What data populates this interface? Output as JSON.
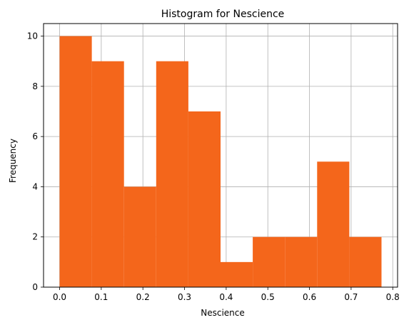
{
  "chart_data": {
    "type": "histogram",
    "title": "Histogram for Nescience",
    "xlabel": "Nescience",
    "ylabel": "Frequency",
    "bin_edges": [
      0.0,
      0.0773,
      0.1546,
      0.2319,
      0.3092,
      0.3865,
      0.4638,
      0.5411,
      0.6184,
      0.6957,
      0.773
    ],
    "counts": [
      10,
      9,
      4,
      9,
      7,
      1,
      2,
      2,
      5,
      2
    ],
    "xlim": [
      -0.0386,
      0.8116
    ],
    "ylim": [
      0,
      10.5
    ],
    "x_ticks": [
      0.0,
      0.1,
      0.2,
      0.3,
      0.4,
      0.5,
      0.6,
      0.7,
      0.8
    ],
    "x_tick_labels": [
      "0.0",
      "0.1",
      "0.2",
      "0.3",
      "0.4",
      "0.5",
      "0.6",
      "0.7",
      "0.8"
    ],
    "y_ticks": [
      0,
      2,
      4,
      6,
      8,
      10
    ],
    "y_tick_labels": [
      "0",
      "2",
      "4",
      "6",
      "8",
      "10"
    ],
    "grid": true,
    "bar_color": "#f4661b",
    "grid_color": "#b0b0b0"
  }
}
